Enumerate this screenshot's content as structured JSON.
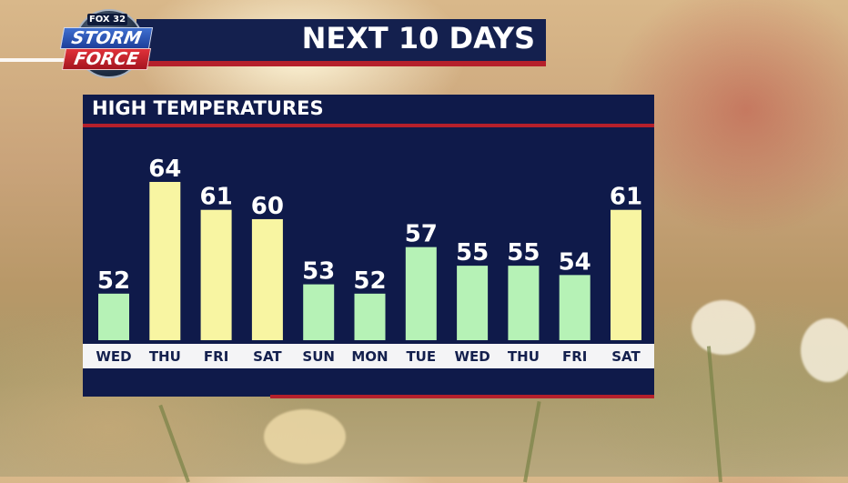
{
  "header": {
    "title": "NEXT 10 DAYS"
  },
  "logo": {
    "network": "FOX 32",
    "line1": "STORM",
    "line2": "FORCE"
  },
  "panel": {
    "title": "HIGH TEMPERATURES"
  },
  "colors": {
    "navy": "#0f1a4a",
    "accent_red": "#b5202b",
    "bar_warm": "#f8f5a2",
    "bar_cool": "#b6f2b6"
  },
  "chart_data": {
    "type": "bar",
    "title": "HIGH TEMPERATURES",
    "categories": [
      "WED",
      "THU",
      "FRI",
      "SAT",
      "SUN",
      "MON",
      "TUE",
      "WED",
      "THU",
      "FRI",
      "SAT"
    ],
    "values": [
      52,
      64,
      61,
      60,
      53,
      52,
      57,
      55,
      55,
      54,
      61
    ],
    "bar_colors": [
      "cool",
      "warm",
      "warm",
      "warm",
      "cool",
      "cool",
      "cool",
      "cool",
      "cool",
      "cool",
      "warm"
    ],
    "ylim": [
      47,
      64
    ],
    "grid": false,
    "legend": "none"
  }
}
